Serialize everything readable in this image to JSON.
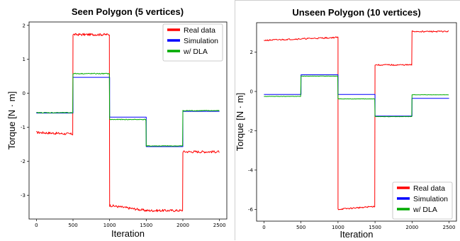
{
  "chart_data": [
    {
      "type": "line",
      "title": "Seen Polygon (5 vertices)",
      "xlabel": "Iteration",
      "ylabel": "Torque [N · m]",
      "xlim": [
        -100,
        2600
      ],
      "ylim": [
        -3.7,
        2.1
      ],
      "xticks": [
        0,
        500,
        1000,
        1500,
        2000,
        2500
      ],
      "yticks": [
        2,
        1,
        0,
        -1,
        -2,
        -3
      ],
      "legend_position": "top-right",
      "series": [
        {
          "name": "Real data",
          "color": "#ff0000",
          "noise": 0.035,
          "segments": [
            [
              0,
              500,
              -1.2
            ],
            [
              500,
              1000,
              1.73
            ],
            [
              1000,
              1500,
              -3.35
            ],
            [
              1500,
              2000,
              -3.45
            ],
            [
              2000,
              2500,
              -1.72
            ]
          ],
          "drift": [
            [
              0,
              500,
              -1.15,
              -1.2
            ],
            [
              1000,
              1500,
              -3.3,
              -3.45
            ],
            [
              1500,
              2000,
              -3.45,
              -3.45
            ]
          ]
        },
        {
          "name": "Simulation",
          "color": "#0000ff",
          "noise": 0,
          "segments": [
            [
              0,
              500,
              -0.58
            ],
            [
              500,
              1000,
              0.47
            ],
            [
              1000,
              1500,
              -0.7
            ],
            [
              1500,
              2000,
              -1.57
            ],
            [
              2000,
              2500,
              -0.53
            ]
          ]
        },
        {
          "name": "w/ DLA",
          "color": "#00aa00",
          "noise": 0.012,
          "segments": [
            [
              0,
              500,
              -0.57
            ],
            [
              500,
              1000,
              0.58
            ],
            [
              1000,
              1500,
              -0.77
            ],
            [
              1500,
              2000,
              -1.55
            ],
            [
              2000,
              2500,
              -0.51
            ]
          ]
        }
      ]
    },
    {
      "type": "line",
      "title": "Unseen Polygon (10 vertices)",
      "xlabel": "Iteration",
      "ylabel": "Torque [N · m]",
      "xlim": [
        -100,
        2600
      ],
      "ylim": [
        -6.6,
        3.5
      ],
      "xticks": [
        0,
        500,
        1000,
        1500,
        2000,
        2500
      ],
      "yticks": [
        2,
        0,
        -2,
        -4,
        -6
      ],
      "legend_position": "bottom-right",
      "series": [
        {
          "name": "Real data",
          "color": "#ff0000",
          "noise": 0.035,
          "segments": [
            [
              0,
              1000,
              2.65
            ],
            [
              1000,
              1500,
              -6.0
            ],
            [
              1500,
              2000,
              1.35
            ],
            [
              2000,
              2500,
              3.05
            ]
          ],
          "drift": [
            [
              0,
              1000,
              2.6,
              2.75
            ],
            [
              1000,
              1500,
              -6.0,
              -5.85
            ]
          ]
        },
        {
          "name": "Simulation",
          "color": "#0000ff",
          "noise": 0,
          "segments": [
            [
              0,
              500,
              -0.15
            ],
            [
              500,
              1000,
              0.85
            ],
            [
              1000,
              1500,
              -0.15
            ],
            [
              1500,
              2000,
              -1.25
            ],
            [
              2000,
              2500,
              -0.35
            ]
          ]
        },
        {
          "name": "w/ DLA",
          "color": "#00aa00",
          "noise": 0.008,
          "segments": [
            [
              0,
              500,
              -0.25
            ],
            [
              500,
              1000,
              0.78
            ],
            [
              1000,
              1500,
              -0.38
            ],
            [
              1500,
              2000,
              -1.28
            ],
            [
              2000,
              2500,
              -0.17
            ]
          ]
        }
      ]
    }
  ]
}
